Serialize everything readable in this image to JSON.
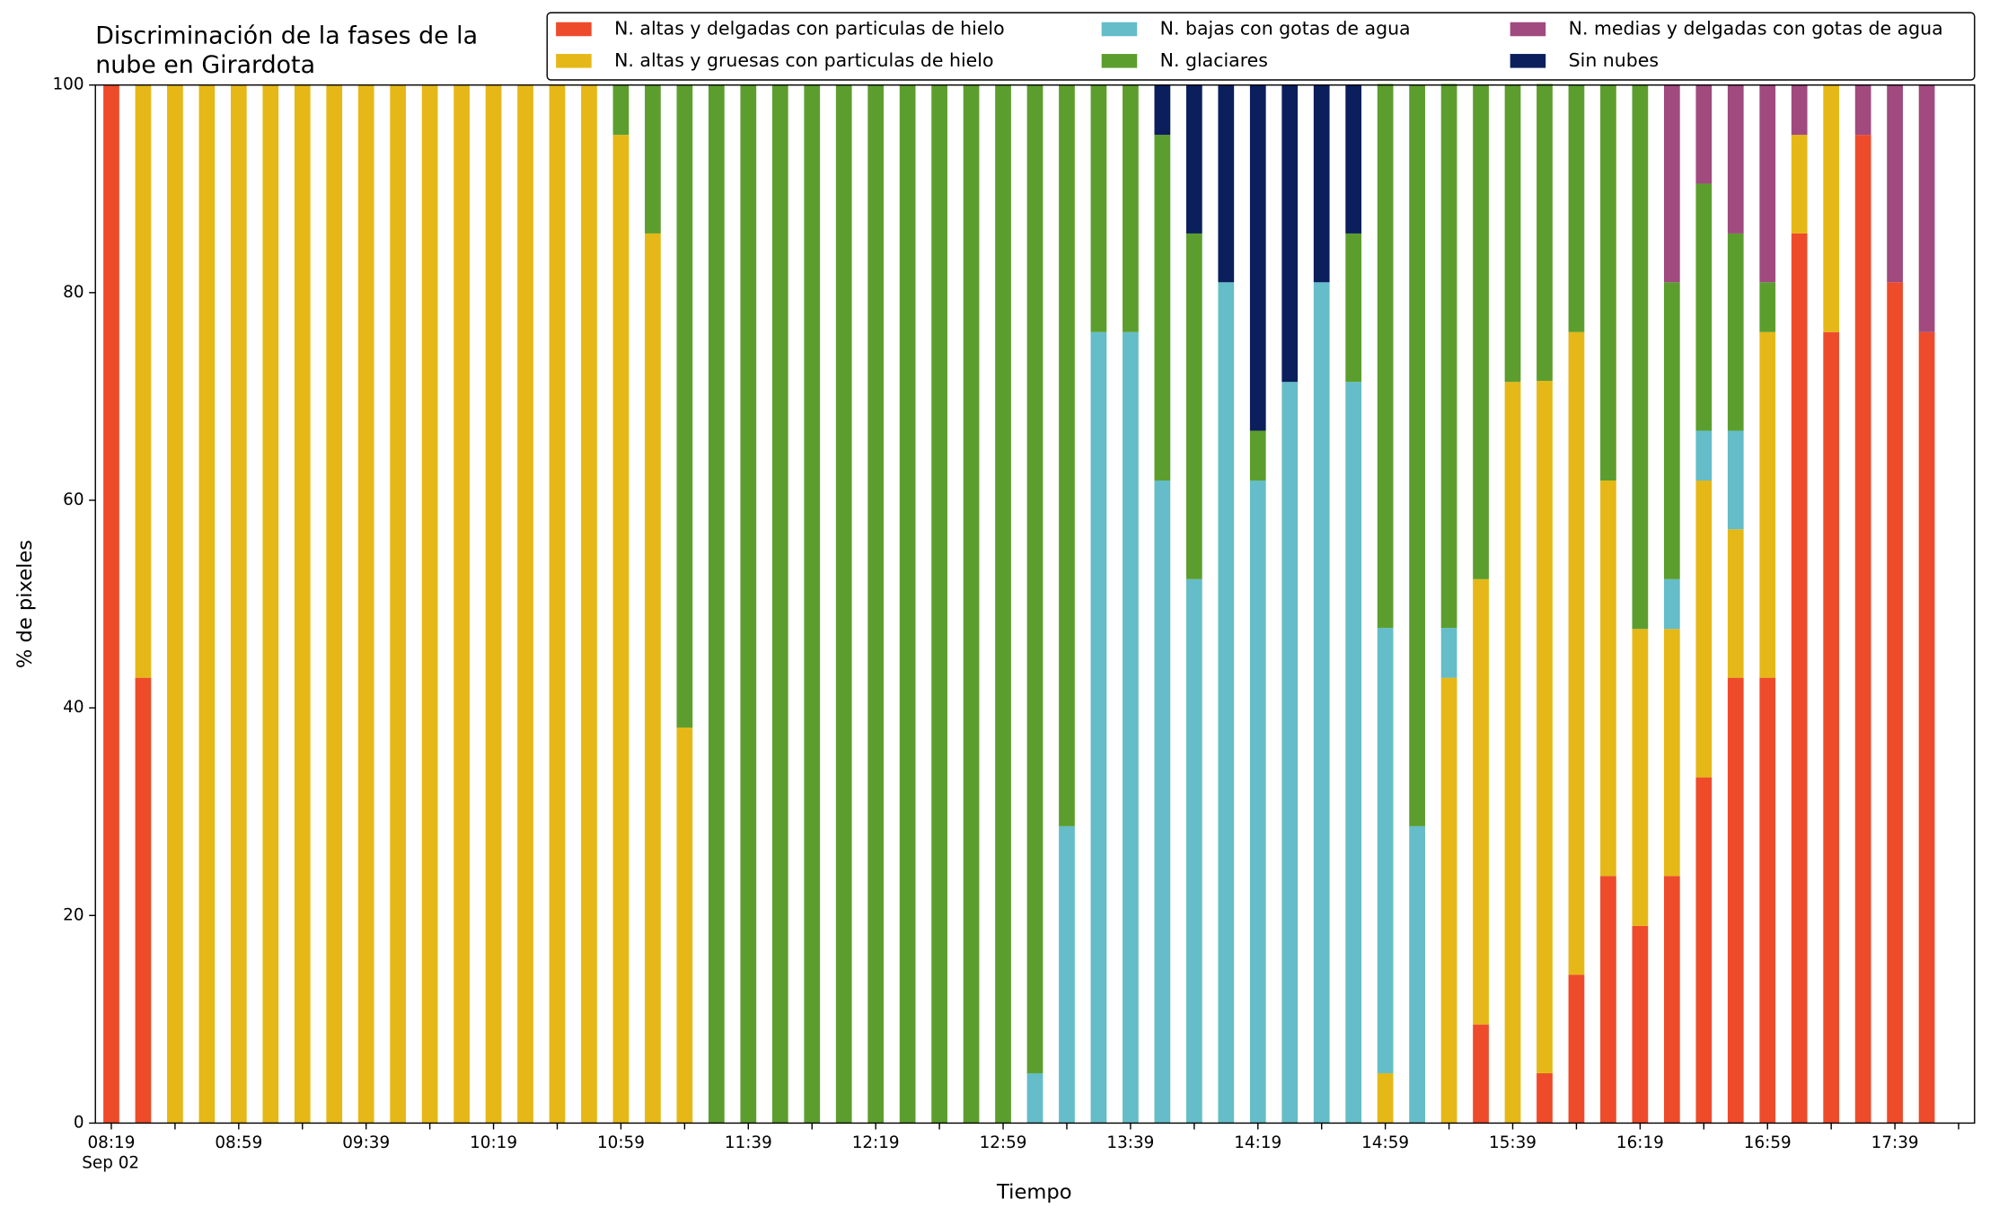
{
  "chart_data": {
    "type": "stacked_bar",
    "title": [
      "Discriminación de la fases de la",
      "nube en Girardota"
    ],
    "x_label": "Tiempo",
    "y_label": "% de pixeles",
    "x_date": "Sep 02",
    "categories": [
      "08:19",
      null,
      null,
      null,
      "08:59",
      null,
      null,
      null,
      "09:39",
      null,
      null,
      null,
      "10:19",
      null,
      null,
      null,
      "10:59",
      null,
      null,
      null,
      "11:39",
      null,
      null,
      null,
      "12:19",
      null,
      null,
      null,
      "12:59",
      null,
      null,
      null,
      "13:39",
      null,
      null,
      null,
      "14:19",
      null,
      null,
      null,
      "14:59",
      null,
      null,
      null,
      "15:39",
      null,
      null,
      null,
      "16:19",
      null,
      null,
      null,
      "16:59",
      null,
      null,
      null,
      "17:39",
      null
    ],
    "ylim": [
      0,
      100
    ],
    "yticks": [
      0,
      20,
      40,
      60,
      80,
      100
    ],
    "grid": false,
    "legend": "top-right",
    "series": [
      {
        "name": "N. altas y delgadas con particulas de hielo",
        "color": "#ee4b2b",
        "values": [
          100,
          42.9,
          0,
          0,
          0,
          0,
          0,
          0,
          0,
          0,
          0,
          0,
          0,
          0,
          0,
          0,
          0,
          0,
          0,
          0,
          0,
          0,
          0,
          0,
          0,
          0,
          0,
          0,
          0,
          0,
          0,
          0,
          0,
          0,
          0,
          0,
          0,
          0,
          0,
          0,
          0,
          0,
          0,
          9.5,
          0,
          4.8,
          14.3,
          23.8,
          19.0,
          23.8,
          33.3,
          42.9,
          42.9,
          85.7,
          76.2,
          95.2,
          81.0,
          76.2
        ]
      },
      {
        "name": "N. altas y gruesas con particulas de hielo",
        "color": "#e6b817",
        "values": [
          0,
          57.1,
          100,
          100,
          100,
          100,
          100,
          100,
          100,
          100,
          100,
          100,
          100,
          100,
          100,
          100,
          95.2,
          85.7,
          38.1,
          0,
          0,
          0,
          0,
          0,
          0,
          0,
          0,
          0,
          0,
          0,
          0,
          0,
          0,
          0,
          0,
          0,
          0,
          0,
          0,
          0,
          4.8,
          0,
          42.9,
          42.9,
          71.4,
          66.7,
          61.9,
          38.1,
          28.6,
          23.8,
          28.6,
          14.3,
          33.3,
          9.5,
          23.8,
          0,
          0,
          0
        ]
      },
      {
        "name": "N. bajas con gotas de agua",
        "color": "#64bdc8",
        "values": [
          0,
          0,
          0,
          0,
          0,
          0,
          0,
          0,
          0,
          0,
          0,
          0,
          0,
          0,
          0,
          0,
          0,
          0,
          0,
          0,
          0,
          0,
          0,
          0,
          0,
          0,
          0,
          0,
          0,
          4.8,
          28.6,
          76.2,
          76.2,
          61.9,
          52.4,
          81.0,
          61.9,
          71.4,
          81.0,
          71.4,
          42.9,
          28.6,
          4.8,
          0,
          0,
          0,
          0,
          0,
          0,
          4.8,
          4.8,
          9.5,
          0,
          0,
          0,
          0,
          0,
          0
        ]
      },
      {
        "name": "N. glaciares",
        "color": "#5c9e2e",
        "values": [
          0,
          0,
          0,
          0,
          0,
          0,
          0,
          0,
          0,
          0,
          0,
          0,
          0,
          0,
          0,
          0,
          4.8,
          14.3,
          61.9,
          100,
          100,
          100,
          100,
          100,
          100,
          100,
          100,
          100,
          100,
          95.2,
          71.4,
          23.8,
          23.8,
          33.3,
          33.3,
          0,
          4.8,
          0,
          0,
          14.3,
          52.4,
          71.4,
          52.4,
          47.6,
          28.6,
          28.6,
          23.8,
          38.1,
          52.4,
          28.6,
          23.8,
          19.0,
          4.8,
          0,
          0,
          0,
          0,
          0
        ]
      },
      {
        "name": "N. medias y delgadas con gotas de agua",
        "color": "#a04a7f",
        "values": [
          0,
          0,
          0,
          0,
          0,
          0,
          0,
          0,
          0,
          0,
          0,
          0,
          0,
          0,
          0,
          0,
          0,
          0,
          0,
          0,
          0,
          0,
          0,
          0,
          0,
          0,
          0,
          0,
          0,
          0,
          0,
          0,
          0,
          0,
          0,
          0,
          0,
          0,
          0,
          0,
          0,
          0,
          0,
          0,
          0,
          0,
          0,
          0,
          0,
          19.0,
          9.5,
          14.3,
          19.0,
          4.8,
          0,
          4.8,
          19.0,
          23.8
        ]
      },
      {
        "name": "Sin nubes",
        "color": "#0a1f5c",
        "values": [
          0,
          0,
          0,
          0,
          0,
          0,
          0,
          0,
          0,
          0,
          0,
          0,
          0,
          0,
          0,
          0,
          0,
          0,
          0,
          0,
          0,
          0,
          0,
          0,
          0,
          0,
          0,
          0,
          0,
          0,
          0,
          0,
          0,
          4.8,
          14.3,
          19.0,
          33.3,
          28.6,
          19.0,
          14.3,
          0,
          0,
          0,
          0,
          0,
          0,
          0,
          0,
          0,
          0,
          0,
          0,
          0,
          0,
          0,
          0,
          0,
          0
        ]
      }
    ]
  }
}
